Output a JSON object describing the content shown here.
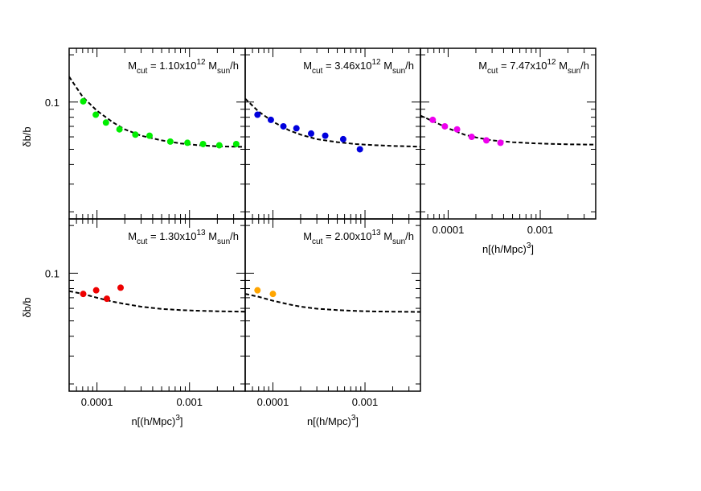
{
  "chart_data": {
    "type": "scatter",
    "xscale": "log",
    "yscale": "log",
    "xlim": [
      5e-05,
      0.004
    ],
    "ylim": [
      0.018,
      0.22
    ],
    "xlabel": "n[(h/Mpc)^3]",
    "ylabel": "δb/b",
    "x_ticks": [
      {
        "value": 0.0001,
        "label": "0.0001"
      },
      {
        "value": 0.001,
        "label": "0.001"
      }
    ],
    "y_ticks": [
      {
        "value": 0.1,
        "label": "0.1"
      }
    ],
    "panels": [
      {
        "id": "p1",
        "title": {
          "prefix": "M",
          "sub1": "cut",
          "mid": " = 1.10x10",
          "sup": "12",
          "sp": " M",
          "sub2": "sun",
          "suffix": "/h"
        },
        "color": "#00ee00",
        "points": [
          {
            "x": 7.1e-05,
            "y": 0.101
          },
          {
            "x": 9.7e-05,
            "y": 0.083
          },
          {
            "x": 0.000125,
            "y": 0.074
          },
          {
            "x": 0.000175,
            "y": 0.067
          },
          {
            "x": 0.00026,
            "y": 0.062
          },
          {
            "x": 0.00037,
            "y": 0.061
          },
          {
            "x": 0.00062,
            "y": 0.056
          },
          {
            "x": 0.00095,
            "y": 0.055
          },
          {
            "x": 0.0014,
            "y": 0.054
          },
          {
            "x": 0.0021,
            "y": 0.053
          },
          {
            "x": 0.0032,
            "y": 0.054
          }
        ],
        "fit": [
          {
            "x": 5e-05,
            "y": 0.145
          },
          {
            "x": 7e-05,
            "y": 0.108
          },
          {
            "x": 0.0001,
            "y": 0.088
          },
          {
            "x": 0.00015,
            "y": 0.074
          },
          {
            "x": 0.0002,
            "y": 0.067
          },
          {
            "x": 0.0003,
            "y": 0.061
          },
          {
            "x": 0.0005,
            "y": 0.057
          },
          {
            "x": 0.0008,
            "y": 0.0545
          },
          {
            "x": 0.0012,
            "y": 0.0532
          },
          {
            "x": 0.002,
            "y": 0.0522
          },
          {
            "x": 0.004,
            "y": 0.0518
          }
        ]
      },
      {
        "id": "p2",
        "title": {
          "prefix": "M",
          "sub1": "cut",
          "mid": " = 3.46x10",
          "sup": "12",
          "sp": " M",
          "sub2": "sun",
          "suffix": "/h"
        },
        "color": "#0000dd",
        "points": [
          {
            "x": 6.8e-05,
            "y": 0.083
          },
          {
            "x": 9.5e-05,
            "y": 0.077
          },
          {
            "x": 0.00013,
            "y": 0.07
          },
          {
            "x": 0.00018,
            "y": 0.068
          },
          {
            "x": 0.00026,
            "y": 0.063
          },
          {
            "x": 0.00037,
            "y": 0.061
          },
          {
            "x": 0.00058,
            "y": 0.058
          },
          {
            "x": 0.00088,
            "y": 0.05
          }
        ],
        "fit": [
          {
            "x": 5e-05,
            "y": 0.105
          },
          {
            "x": 7e-05,
            "y": 0.087
          },
          {
            "x": 0.0001,
            "y": 0.075
          },
          {
            "x": 0.00015,
            "y": 0.066
          },
          {
            "x": 0.0002,
            "y": 0.062
          },
          {
            "x": 0.0003,
            "y": 0.058
          },
          {
            "x": 0.0005,
            "y": 0.0555
          },
          {
            "x": 0.0008,
            "y": 0.054
          },
          {
            "x": 0.0012,
            "y": 0.0532
          },
          {
            "x": 0.002,
            "y": 0.0525
          },
          {
            "x": 0.004,
            "y": 0.052
          }
        ]
      },
      {
        "id": "p3",
        "title": {
          "prefix": "M",
          "sub1": "cut",
          "mid": " = 7.47x10",
          "sup": "12",
          "sp": " M",
          "sub2": "sun",
          "suffix": "/h"
        },
        "color": "#ee00ee",
        "points": [
          {
            "x": 6.8e-05,
            "y": 0.077
          },
          {
            "x": 9.2e-05,
            "y": 0.07
          },
          {
            "x": 0.000125,
            "y": 0.067
          },
          {
            "x": 0.00018,
            "y": 0.06
          },
          {
            "x": 0.00026,
            "y": 0.057
          },
          {
            "x": 0.00037,
            "y": 0.055
          }
        ],
        "fit": [
          {
            "x": 5e-05,
            "y": 0.082
          },
          {
            "x": 7e-05,
            "y": 0.075
          },
          {
            "x": 0.0001,
            "y": 0.068
          },
          {
            "x": 0.00015,
            "y": 0.062
          },
          {
            "x": 0.0002,
            "y": 0.0595
          },
          {
            "x": 0.0003,
            "y": 0.057
          },
          {
            "x": 0.0005,
            "y": 0.0555
          },
          {
            "x": 0.0008,
            "y": 0.0547
          },
          {
            "x": 0.0012,
            "y": 0.0542
          },
          {
            "x": 0.002,
            "y": 0.0538
          },
          {
            "x": 0.004,
            "y": 0.0535
          }
        ]
      },
      {
        "id": "p4",
        "title": {
          "prefix": "M",
          "sub1": "cut",
          "mid": " = 1.30x10",
          "sup": "13",
          "sp": " M",
          "sub2": "sun",
          "suffix": "/h"
        },
        "color": "#ee0000",
        "points": [
          {
            "x": 7.1e-05,
            "y": 0.074
          },
          {
            "x": 9.8e-05,
            "y": 0.078
          },
          {
            "x": 0.000128,
            "y": 0.069
          },
          {
            "x": 0.00018,
            "y": 0.081
          }
        ],
        "fit": [
          {
            "x": 5e-05,
            "y": 0.077
          },
          {
            "x": 7e-05,
            "y": 0.074
          },
          {
            "x": 0.0001,
            "y": 0.07
          },
          {
            "x": 0.00015,
            "y": 0.066
          },
          {
            "x": 0.0002,
            "y": 0.064
          },
          {
            "x": 0.0003,
            "y": 0.0615
          },
          {
            "x": 0.0005,
            "y": 0.0595
          },
          {
            "x": 0.0008,
            "y": 0.0585
          },
          {
            "x": 0.0012,
            "y": 0.058
          },
          {
            "x": 0.002,
            "y": 0.0575
          },
          {
            "x": 0.004,
            "y": 0.0572
          }
        ]
      },
      {
        "id": "p5",
        "title": {
          "prefix": "M",
          "sub1": "cut",
          "mid": " = 2.00x10",
          "sup": "13",
          "sp": " M",
          "sub2": "sun",
          "suffix": "/h"
        },
        "color": "#ffa500",
        "points": [
          {
            "x": 6.8e-05,
            "y": 0.078
          },
          {
            "x": 0.0001,
            "y": 0.074
          }
        ],
        "fit": [
          {
            "x": 5e-05,
            "y": 0.074
          },
          {
            "x": 7e-05,
            "y": 0.071
          },
          {
            "x": 0.0001,
            "y": 0.067
          },
          {
            "x": 0.00015,
            "y": 0.0635
          },
          {
            "x": 0.0002,
            "y": 0.0615
          },
          {
            "x": 0.0003,
            "y": 0.0597
          },
          {
            "x": 0.0005,
            "y": 0.0585
          },
          {
            "x": 0.0008,
            "y": 0.0578
          },
          {
            "x": 0.0012,
            "y": 0.0574
          },
          {
            "x": 0.002,
            "y": 0.0572
          },
          {
            "x": 0.004,
            "y": 0.057
          }
        ]
      }
    ]
  }
}
